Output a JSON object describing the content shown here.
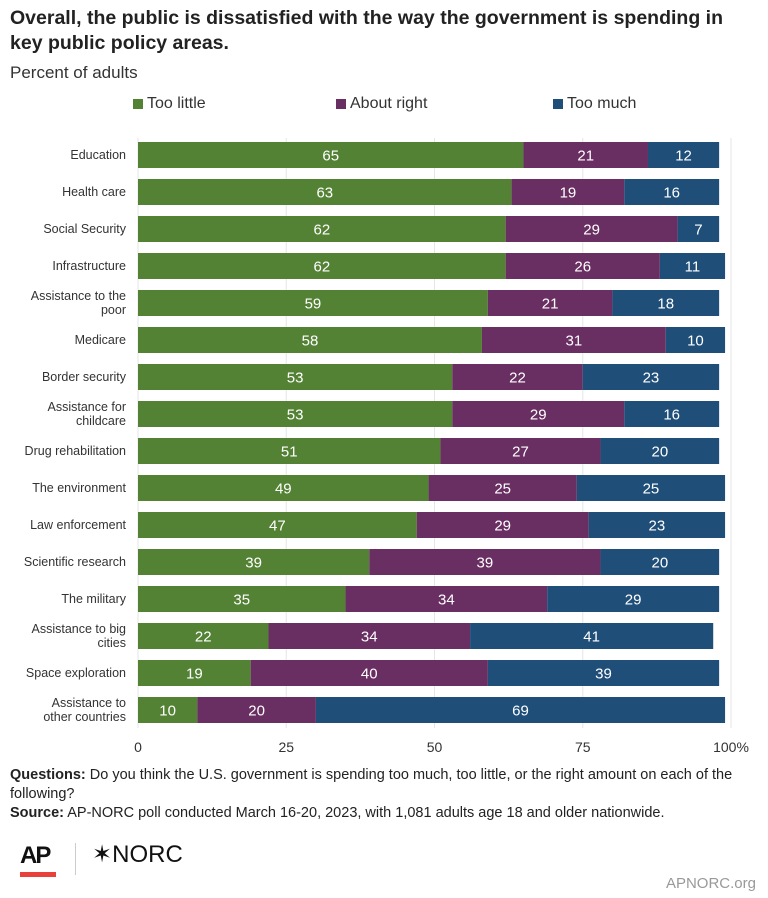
{
  "chart_data": {
    "type": "bar",
    "orientation": "horizontal",
    "stacked": true,
    "title": "Overall, the public is dissatisfied with the way the government is spending in key public policy areas.",
    "subtitle": "Percent of adults",
    "categories": [
      "Education",
      "Health care",
      "Social Security",
      "Infrastructure",
      "Assistance to the poor",
      "Medicare",
      "Border security",
      "Assistance for childcare",
      "Drug rehabilitation",
      "The environment",
      "Law enforcement",
      "Scientific research",
      "The military",
      "Assistance to big cities",
      "Space exploration",
      "Assistance to other countries"
    ],
    "series": [
      {
        "name": "Too little",
        "color": "#548235",
        "values": [
          65,
          63,
          62,
          62,
          59,
          58,
          53,
          53,
          51,
          49,
          47,
          39,
          35,
          22,
          19,
          10
        ]
      },
      {
        "name": "About right",
        "color": "#6a2f62",
        "values": [
          21,
          19,
          29,
          26,
          21,
          31,
          22,
          29,
          27,
          25,
          29,
          39,
          34,
          34,
          40,
          20
        ]
      },
      {
        "name": "Too much",
        "color": "#1f4e79",
        "values": [
          12,
          16,
          7,
          11,
          18,
          10,
          23,
          16,
          20,
          25,
          23,
          20,
          29,
          41,
          39,
          69
        ]
      }
    ],
    "xlim": [
      0,
      100
    ],
    "xticks": [
      "0",
      "25",
      "50",
      "75",
      "100%"
    ],
    "xtick_values": [
      0,
      25,
      50,
      75,
      100
    ],
    "grid": true,
    "legend_placement": "top"
  },
  "notes": {
    "questions_label": "Questions:",
    "questions_text": " Do you think the U.S. government is spending too much, too little, or the right amount on each of the following?",
    "source_label": "Source:",
    "source_text": " AP-NORC poll conducted March 16-20, 2023, with 1,081 adults age 18 and older nationwide."
  },
  "footer": {
    "logo_ap": "AP",
    "logo_norc": "NORC",
    "site": "APNORC.org"
  }
}
